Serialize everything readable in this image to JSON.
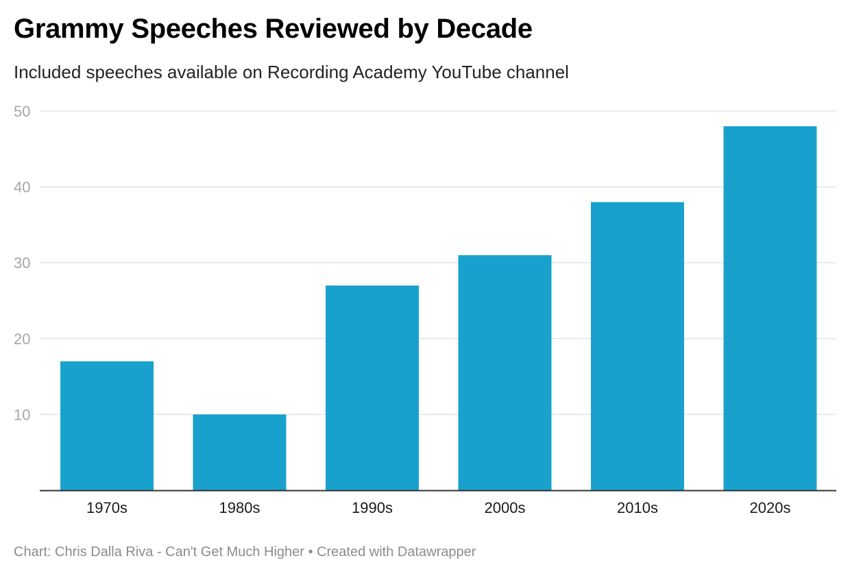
{
  "header": {
    "title": "Grammy Speeches Reviewed by Decade",
    "subtitle": "Included speeches available on Recording Academy YouTube channel"
  },
  "footer": {
    "text": "Chart: Chris Dalla Riva - Can't Get Much Higher • Created with Datawrapper"
  },
  "colors": {
    "bar": "#18a1cd",
    "grid": "#e3e3e3",
    "axis": "#333333",
    "tick_label_y": "#a6a6a6",
    "tick_label_x": "#1a1a1a"
  },
  "chart_data": {
    "type": "bar",
    "title": "Grammy Speeches Reviewed by Decade",
    "subtitle": "Included speeches available on Recording Academy YouTube channel",
    "categories": [
      "1970s",
      "1980s",
      "1990s",
      "2000s",
      "2010s",
      "2020s"
    ],
    "values": [
      17,
      10,
      27,
      31,
      38,
      48
    ],
    "ylim": [
      0,
      50
    ],
    "yticks": [
      10,
      20,
      30,
      40,
      50
    ],
    "grid": true,
    "xlabel": "",
    "ylabel": ""
  }
}
